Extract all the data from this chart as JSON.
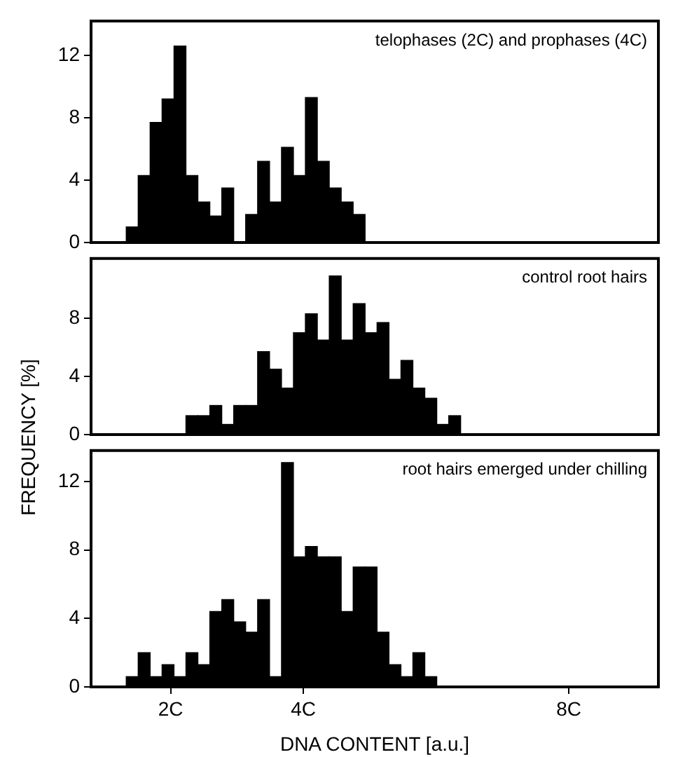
{
  "chart_data": [
    {
      "type": "histogram",
      "annotations": [
        "telophases (2C) and prophases (4C)"
      ],
      "color": "#000000",
      "bins": [
        1.33,
        1.51,
        1.69,
        1.87,
        2.05,
        2.23,
        2.41,
        2.59,
        2.77,
        2.95,
        3.13,
        3.31,
        3.49,
        3.67,
        3.85,
        4.03,
        4.21,
        4.39,
        4.57,
        4.75,
        4.93
      ],
      "values": [
        1,
        4.3,
        7.7,
        9.2,
        12.6,
        4.3,
        2.6,
        1.7,
        3.5,
        0,
        1.8,
        5.2,
        2.6,
        6.1,
        4.3,
        9.3,
        5.2,
        3.5,
        2.6,
        1.8
      ],
      "xlim": [
        0.8,
        9.35
      ],
      "ylim": [
        0,
        14.2
      ],
      "yticks": [
        0,
        4,
        8,
        12
      ],
      "tick_labels": "y",
      "grid": false,
      "legend": false
    },
    {
      "type": "histogram",
      "annotations": [
        "control root hairs"
      ],
      "color": "#000000",
      "ylabel": "FREQUENCY [%]",
      "bins": [
        2.23,
        2.41,
        2.59,
        2.77,
        2.95,
        3.13,
        3.31,
        3.49,
        3.67,
        3.85,
        4.03,
        4.21,
        4.39,
        4.57,
        4.75,
        4.93,
        5.11,
        5.29,
        5.47,
        5.65,
        5.83,
        6.01,
        6.19,
        6.37
      ],
      "values": [
        1.3,
        1.3,
        2,
        0.7,
        2,
        2,
        5.7,
        4.5,
        3.2,
        7,
        8.3,
        6.5,
        10.9,
        6.5,
        9,
        7,
        7.7,
        3.8,
        5.1,
        3.2,
        2.5,
        0.7,
        1.3
      ],
      "xlim": [
        0.8,
        9.35
      ],
      "ylim": [
        0,
        12.1
      ],
      "yticks": [
        0,
        4,
        8
      ],
      "tick_labels": "y",
      "grid": false,
      "legend": false
    },
    {
      "type": "histogram",
      "annotations": [
        "root hairs emerged under chilling"
      ],
      "color": "#000000",
      "xlabel": "DNA CONTENT [a.u.]",
      "bins": [
        1.33,
        1.51,
        1.69,
        1.87,
        2.05,
        2.23,
        2.41,
        2.59,
        2.77,
        2.95,
        3.13,
        3.31,
        3.49,
        3.67,
        3.85,
        4.03,
        4.21,
        4.39,
        4.57,
        4.75,
        4.93,
        5.11,
        5.29,
        5.47,
        5.65,
        5.83,
        6.01
      ],
      "values": [
        0.6,
        2,
        0.6,
        1.3,
        0.6,
        2,
        1.3,
        4.4,
        5.1,
        3.8,
        3.2,
        5.1,
        0.6,
        13.1,
        7.6,
        8.2,
        7.6,
        7.6,
        4.4,
        7,
        7,
        3.2,
        1.3,
        0.6,
        2,
        0.6
      ],
      "xlim": [
        0.8,
        9.35
      ],
      "xticks": [
        {
          "value": 2,
          "label": "2C"
        },
        {
          "value": 4,
          "label": "4C"
        },
        {
          "value": 8,
          "label": "8C"
        }
      ],
      "ylim": [
        0,
        13.8
      ],
      "yticks": [
        0,
        4,
        8,
        12
      ],
      "grid": false,
      "legend": false
    }
  ]
}
